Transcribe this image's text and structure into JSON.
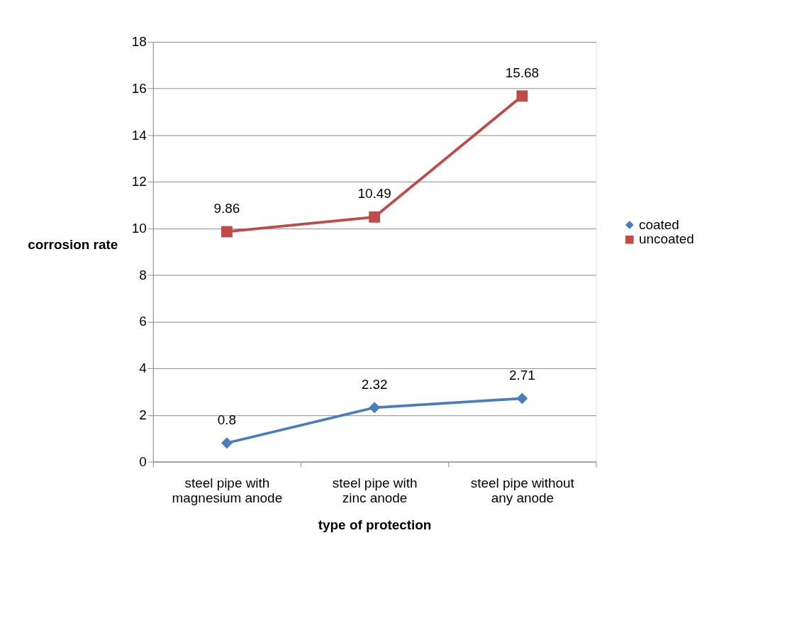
{
  "chart_data": {
    "type": "line",
    "xlabel": "type of protection",
    "ylabel": "corrosion rate",
    "categories": [
      "steel pipe with magnesium anode",
      "steel pipe with zinc anode",
      "steel pipe without any anode"
    ],
    "series": [
      {
        "name": "coated",
        "color": "#4a7ebb",
        "marker": "diamond",
        "values": [
          0.8,
          2.32,
          2.71
        ]
      },
      {
        "name": "uncoated",
        "color": "#be4b48",
        "marker": "square",
        "values": [
          9.86,
          10.49,
          15.68
        ]
      }
    ],
    "ylim": [
      0,
      18
    ],
    "yticks": [
      0,
      2,
      4,
      6,
      8,
      10,
      12,
      14,
      16,
      18
    ],
    "grid": "y",
    "legend": "right",
    "data_labels": true,
    "line_style": "solid"
  }
}
